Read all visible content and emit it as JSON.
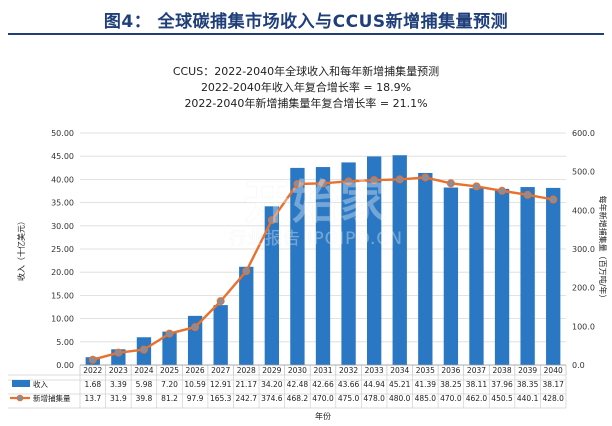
{
  "header": {
    "title": "图4： 全球碳捕集市场收入与CCUS新增捕集量预测"
  },
  "chart_data": {
    "type": "bar",
    "title_lines": [
      "CCUS：2022-2040年全球收入和每年新增捕集量预测",
      "2022-2040年收入年复合增长率  = 18.9%",
      "2022-2040年新增捕集量年复合增长率  = 21.1%"
    ],
    "categories": [
      "2022",
      "2023",
      "2024",
      "2025",
      "2026",
      "2027",
      "2028",
      "2029",
      "2030",
      "2031",
      "2032",
      "2033",
      "2034",
      "2035",
      "2036",
      "2037",
      "2038",
      "2039",
      "2040"
    ],
    "series": [
      {
        "name": "收入",
        "type": "bar",
        "axis": "left",
        "values": [
          1.68,
          3.39,
          5.98,
          7.2,
          10.59,
          12.91,
          21.17,
          34.2,
          42.48,
          42.66,
          43.66,
          44.94,
          45.21,
          41.39,
          38.25,
          38.11,
          37.96,
          38.35,
          38.17
        ],
        "labels": [
          "1.68",
          "3.39",
          "5.98",
          "7.20",
          "10.59",
          "12.91",
          "21.17",
          "34.20",
          "42.48",
          "42.66",
          "43.66",
          "44.94",
          "45.21",
          "41.39",
          "38.25",
          "38.11",
          "37.96",
          "38.35",
          "38.17"
        ]
      },
      {
        "name": "新增捕集量",
        "type": "line",
        "axis": "right",
        "values": [
          13.7,
          31.9,
          39.8,
          81.2,
          97.9,
          165.3,
          242.7,
          374.6,
          468.2,
          470.0,
          475.0,
          478.0,
          480.0,
          485.0,
          470.0,
          462.0,
          450.5,
          440.1,
          428.0
        ],
        "labels": [
          "13.7",
          "31.9",
          "39.8",
          "81.2",
          "97.9",
          "165.3",
          "242.7",
          "374.6",
          "468.2",
          "470.0",
          "475.0",
          "478.0",
          "480.0",
          "485.0",
          "470.0",
          "462.0",
          "450.5",
          "440.1",
          "428.0"
        ]
      }
    ],
    "ylabel": "收入（十亿美元）",
    "ylabel_right": "每年新增捕集量（百万吨/年）",
    "xlabel": "年份",
    "ylim": [
      0,
      50
    ],
    "ylim_right": [
      0,
      600
    ],
    "yticks": [
      "0.00",
      "5.00",
      "10.00",
      "15.00",
      "20.00",
      "25.00",
      "30.00",
      "35.00",
      "40.00",
      "45.00",
      "50.00"
    ],
    "yticks_right": [
      "0.0",
      "100.0",
      "200.0",
      "300.0",
      "400.0",
      "500.0",
      "600.0"
    ],
    "grid": true,
    "legend": "table-bottom",
    "colors": {
      "bar": "#2a78c4",
      "line": "#e8712e",
      "marker": "#7f8fa6",
      "title_blue": "#1f3f7a",
      "grid": "#d9d9d9"
    }
  },
  "watermark": {
    "main": "开始家",
    "sub": "行业报告 IPOIPO.CN"
  }
}
